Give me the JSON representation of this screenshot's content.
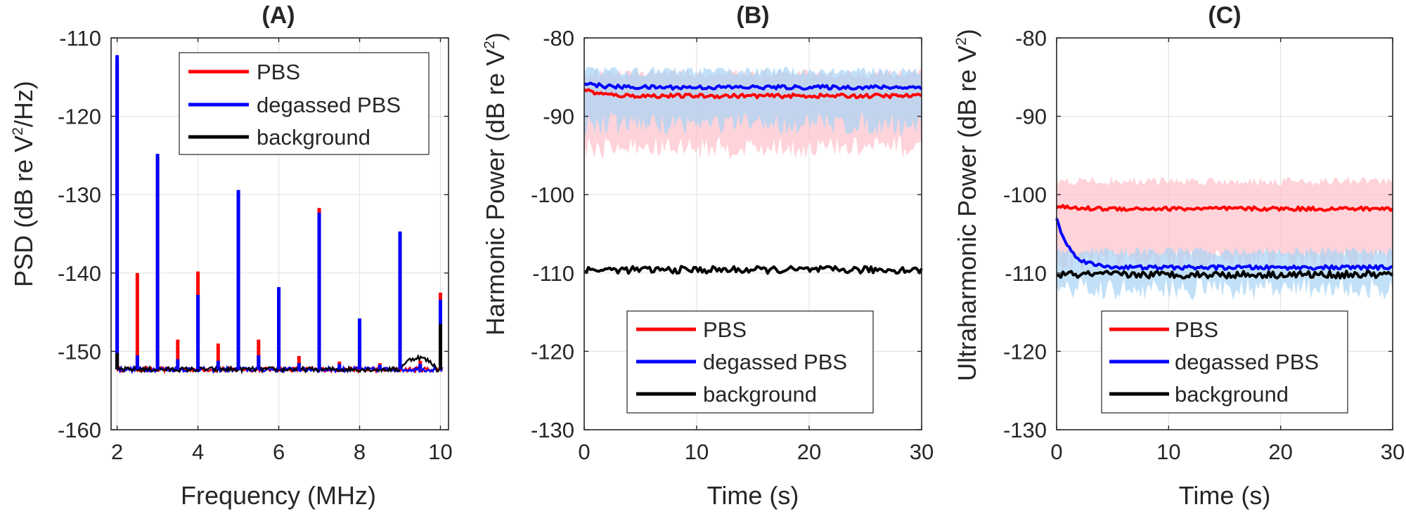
{
  "figure": {
    "background": "#ffffff",
    "axis_color": "#262626",
    "grid_color": "#e3e3e3"
  },
  "chart_data": [
    {
      "id": "A",
      "type": "line",
      "title": "(A)",
      "xlabel": "Frequency (MHz)",
      "ylabel_main": "PSD (dB re V",
      "ylabel_sup": "2",
      "ylabel_tail": "/Hz)",
      "xlim": [
        1.85,
        10.2
      ],
      "ylim": [
        -160,
        -110
      ],
      "xticks": [
        2,
        4,
        6,
        8,
        10
      ],
      "xtick_labels": [
        "2",
        "4",
        "6",
        "8",
        "10"
      ],
      "yticks": [
        -160,
        -150,
        -140,
        -130,
        -120,
        -110
      ],
      "ytick_labels": [
        "-160",
        "-150",
        "-140",
        "-130",
        "-120",
        "-110"
      ],
      "grid": true,
      "legend_position": "top-right",
      "baseline_db": -152.3,
      "series": [
        {
          "name": "PBS",
          "color": "#ff0000",
          "peaks": [
            [
              2.0,
              -113.0
            ],
            [
              2.5,
              -140.0
            ],
            [
              3.0,
              -125.2
            ],
            [
              3.5,
              -148.5
            ],
            [
              4.0,
              -139.8
            ],
            [
              4.5,
              -149.0
            ],
            [
              5.0,
              -129.7
            ],
            [
              5.5,
              -148.5
            ],
            [
              6.0,
              -142.3
            ],
            [
              6.5,
              -150.6
            ],
            [
              7.0,
              -131.7
            ],
            [
              7.5,
              -151.3
            ],
            [
              8.0,
              -146.2
            ],
            [
              8.5,
              -151.5
            ],
            [
              9.0,
              -135.0
            ],
            [
              9.5,
              -151.2
            ],
            [
              10.0,
              -142.5
            ]
          ]
        },
        {
          "name": "degassed PBS",
          "color": "#0000ff",
          "peaks": [
            [
              2.0,
              -112.2
            ],
            [
              2.5,
              -150.5
            ],
            [
              3.0,
              -124.8
            ],
            [
              3.5,
              -151.0
            ],
            [
              4.0,
              -142.8
            ],
            [
              4.5,
              -151.2
            ],
            [
              5.0,
              -129.4
            ],
            [
              5.5,
              -150.5
            ],
            [
              6.0,
              -141.8
            ],
            [
              6.5,
              -151.5
            ],
            [
              7.0,
              -132.3
            ],
            [
              7.5,
              -151.6
            ],
            [
              8.0,
              -145.8
            ],
            [
              8.5,
              -151.7
            ],
            [
              9.0,
              -134.7
            ],
            [
              9.5,
              -151.6
            ],
            [
              10.0,
              -143.4
            ]
          ]
        },
        {
          "name": "background",
          "color": "#000000",
          "peaks": [
            [
              2.0,
              -150.2
            ],
            [
              10.0,
              -146.5
            ]
          ]
        }
      ]
    },
    {
      "id": "B",
      "type": "line",
      "title": "(B)",
      "xlabel": "Time (s)",
      "ylabel_main": "Harmonic Power (dB re V",
      "ylabel_sup": "2",
      "ylabel_tail": ")",
      "xlim": [
        0,
        30
      ],
      "ylim": [
        -130,
        -80
      ],
      "xticks": [
        0,
        10,
        20,
        30
      ],
      "xtick_labels": [
        "0",
        "10",
        "20",
        "30"
      ],
      "yticks": [
        -130,
        -120,
        -110,
        -100,
        -90,
        -80
      ],
      "ytick_labels": [
        "-130",
        "-120",
        "-110",
        "-100",
        "-90",
        "-80"
      ],
      "grid": true,
      "legend_position": "bottom-center",
      "series": [
        {
          "name": "PBS",
          "color": "#ff0000",
          "band_color": "#ffc0cb",
          "mean": -87.4,
          "start": -86.5,
          "band_upper": -84.8,
          "band_lower": -94.0
        },
        {
          "name": "degassed PBS",
          "color": "#0000ff",
          "band_color": "#a8d4f5",
          "mean": -86.3,
          "start": -85.6,
          "band_upper": -84.5,
          "band_lower": -91.0
        },
        {
          "name": "background",
          "color": "#000000",
          "mean": -109.6
        }
      ]
    },
    {
      "id": "C",
      "type": "line",
      "title": "(C)",
      "xlabel": "Time (s)",
      "ylabel_main": "Ultraharmonic Power (dB re V",
      "ylabel_sup": "2",
      "ylabel_tail": ")",
      "xlim": [
        0,
        30
      ],
      "ylim": [
        -130,
        -80
      ],
      "xticks": [
        0,
        10,
        20,
        30
      ],
      "xtick_labels": [
        "0",
        "10",
        "20",
        "30"
      ],
      "yticks": [
        -130,
        -120,
        -110,
        -100,
        -90,
        -80
      ],
      "ytick_labels": [
        "-130",
        "-120",
        "-110",
        "-100",
        "-90",
        "-80"
      ],
      "grid": true,
      "legend_position": "bottom-center",
      "series": [
        {
          "name": "PBS",
          "color": "#ff0000",
          "band_color": "#ffc0cb",
          "mean": -101.8,
          "start": -101.5,
          "band_upper": -98.5,
          "band_lower": -108.5
        },
        {
          "name": "degassed PBS",
          "color": "#0000ff",
          "band_color": "#a8d4f5",
          "mean": -109.3,
          "start": -103.0,
          "band_upper": -107.5,
          "band_lower": -112.0
        },
        {
          "name": "background",
          "color": "#000000",
          "mean": -110.2
        }
      ]
    }
  ]
}
